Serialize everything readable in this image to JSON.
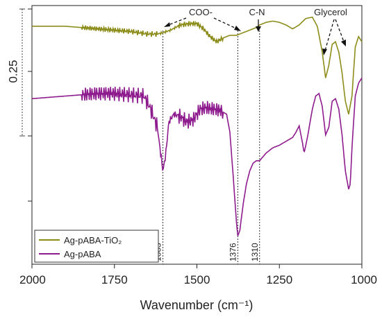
{
  "chart_data": {
    "type": "line",
    "xlabel": "Wavenumber (cm⁻¹)",
    "xlim": [
      2000,
      1000
    ],
    "x_ticks": [
      2000,
      1750,
      1500,
      1250,
      1000
    ],
    "y_scale_bar_label": "0.25",
    "legend": {
      "placement": "bottom-left",
      "entries": [
        {
          "name": "Ag-pABA-TiO₂",
          "color": "#8c8c1a"
        },
        {
          "name": "Ag-pABA",
          "color": "#8e1b8e"
        }
      ]
    },
    "marker_lines": [
      {
        "x": 1603,
        "label": "1603"
      },
      {
        "x": 1376,
        "label": "1376"
      },
      {
        "x": 1310,
        "label": "1310"
      }
    ],
    "annotations": [
      {
        "text": "COO-"
      },
      {
        "text": "C-N"
      },
      {
        "text": "Glycerol"
      }
    ],
    "series": [
      {
        "name": "Ag-pABA-TiO₂",
        "color": "#8c8c1a",
        "x": [
          2000,
          1950,
          1900,
          1850,
          1800,
          1750,
          1700,
          1650,
          1620,
          1603,
          1580,
          1550,
          1520,
          1500,
          1480,
          1460,
          1440,
          1420,
          1400,
          1380,
          1360,
          1340,
          1320,
          1310,
          1290,
          1270,
          1250,
          1230,
          1210,
          1190,
          1170,
          1150,
          1135,
          1120,
          1110,
          1100,
          1090,
          1080,
          1070,
          1060,
          1050,
          1040,
          1030,
          1020,
          1010,
          1000
        ],
        "y": [
          0.92,
          0.92,
          0.92,
          0.915,
          0.91,
          0.905,
          0.9,
          0.89,
          0.89,
          0.895,
          0.905,
          0.925,
          0.93,
          0.93,
          0.91,
          0.88,
          0.86,
          0.875,
          0.885,
          0.885,
          0.895,
          0.905,
          0.915,
          0.925,
          0.935,
          0.94,
          0.935,
          0.925,
          0.91,
          0.925,
          0.95,
          0.955,
          0.92,
          0.82,
          0.72,
          0.77,
          0.85,
          0.86,
          0.82,
          0.74,
          0.63,
          0.58,
          0.65,
          0.84,
          0.88,
          0.86
        ]
      },
      {
        "name": "Ag-pABA",
        "color": "#8e1b8e",
        "x": [
          2000,
          1950,
          1900,
          1850,
          1800,
          1750,
          1700,
          1660,
          1640,
          1620,
          1610,
          1603,
          1595,
          1585,
          1570,
          1550,
          1530,
          1510,
          1490,
          1470,
          1450,
          1430,
          1410,
          1400,
          1390,
          1380,
          1376,
          1370,
          1360,
          1350,
          1340,
          1330,
          1320,
          1310,
          1290,
          1270,
          1250,
          1230,
          1210,
          1200,
          1190,
          1180,
          1175,
          1165,
          1150,
          1140,
          1130,
          1120,
          1110,
          1100,
          1090,
          1080,
          1070,
          1060,
          1050,
          1040,
          1035,
          1030,
          1020,
          1010,
          1000
        ],
        "y": [
          0.64,
          0.645,
          0.65,
          0.655,
          0.66,
          0.66,
          0.655,
          0.65,
          0.6,
          0.53,
          0.43,
          0.36,
          0.42,
          0.55,
          0.58,
          0.57,
          0.55,
          0.56,
          0.6,
          0.605,
          0.6,
          0.595,
          0.58,
          0.51,
          0.34,
          0.16,
          0.11,
          0.13,
          0.23,
          0.31,
          0.36,
          0.39,
          0.4,
          0.4,
          0.43,
          0.45,
          0.46,
          0.475,
          0.49,
          0.51,
          0.535,
          0.47,
          0.43,
          0.49,
          0.6,
          0.65,
          0.66,
          0.61,
          0.5,
          0.53,
          0.63,
          0.64,
          0.6,
          0.5,
          0.36,
          0.29,
          0.31,
          0.45,
          0.65,
          0.7,
          0.72
        ]
      }
    ]
  }
}
